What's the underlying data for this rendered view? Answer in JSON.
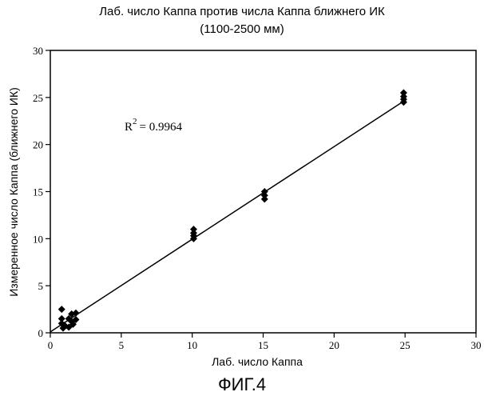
{
  "chart_data": {
    "type": "scatter",
    "title_line1": "Лаб. число Каппа против числа Каппа ближнего ИК",
    "title_line2": "(1100-2500 мм)",
    "xlabel": "Лаб. число Каппа",
    "ylabel": "Измеренное число Каппа (ближнего ИК)",
    "xlim": [
      0,
      30
    ],
    "ylim": [
      0,
      30
    ],
    "xticks": [
      0,
      5,
      10,
      15,
      20,
      25,
      30
    ],
    "yticks": [
      0,
      5,
      10,
      15,
      20,
      25,
      30
    ],
    "annotation": {
      "r_label": "R",
      "r_exp": "2",
      "r_value": "= 0.9964"
    },
    "fit_line": {
      "x": [
        0,
        25
      ],
      "y": [
        0.1,
        24.7
      ]
    },
    "points": [
      {
        "x": 0.8,
        "y": 2.5
      },
      {
        "x": 0.8,
        "y": 1.5
      },
      {
        "x": 0.8,
        "y": 1.0
      },
      {
        "x": 0.9,
        "y": 0.5
      },
      {
        "x": 1.0,
        "y": 0.8
      },
      {
        "x": 1.3,
        "y": 1.5
      },
      {
        "x": 1.3,
        "y": 0.6
      },
      {
        "x": 1.5,
        "y": 1.2
      },
      {
        "x": 1.5,
        "y": 2.0
      },
      {
        "x": 1.8,
        "y": 2.1
      },
      {
        "x": 1.8,
        "y": 1.4
      },
      {
        "x": 1.6,
        "y": 0.9
      },
      {
        "x": 10.1,
        "y": 11.0
      },
      {
        "x": 10.1,
        "y": 10.6
      },
      {
        "x": 10.1,
        "y": 10.3
      },
      {
        "x": 10.1,
        "y": 10.0
      },
      {
        "x": 15.1,
        "y": 15.0
      },
      {
        "x": 15.1,
        "y": 14.6
      },
      {
        "x": 15.1,
        "y": 14.2
      },
      {
        "x": 24.9,
        "y": 25.5
      },
      {
        "x": 24.9,
        "y": 25.1
      },
      {
        "x": 24.9,
        "y": 24.8
      },
      {
        "x": 24.9,
        "y": 24.5
      }
    ]
  },
  "figure_caption": "ФИГ.4"
}
